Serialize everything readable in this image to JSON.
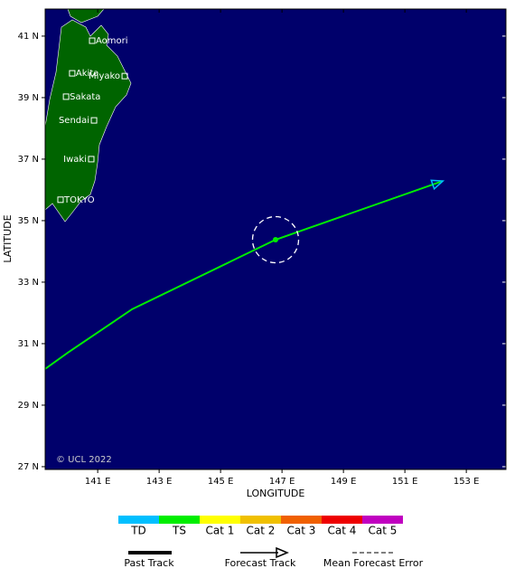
{
  "chart_data": {
    "type": "track",
    "xlabel": "LONGITUDE",
    "ylabel": "LATITUDE",
    "credit": "© UCL 2022",
    "xlim": [
      139.29,
      154.29
    ],
    "ylim": [
      26.91,
      41.88
    ],
    "xticks": [
      {
        "value": 141,
        "label": "141 E"
      },
      {
        "value": 143,
        "label": "143 E"
      },
      {
        "value": 145,
        "label": "145 E"
      },
      {
        "value": 147,
        "label": "147 E"
      },
      {
        "value": 149,
        "label": "149 E"
      },
      {
        "value": 151,
        "label": "151 E"
      },
      {
        "value": 153,
        "label": "153 E"
      }
    ],
    "yticks": [
      {
        "value": 27,
        "label": "27 N"
      },
      {
        "value": 29,
        "label": "29 N"
      },
      {
        "value": 31,
        "label": "31 N"
      },
      {
        "value": 33,
        "label": "33 N"
      },
      {
        "value": 35,
        "label": "35 N"
      },
      {
        "value": 37,
        "label": "37 N"
      },
      {
        "value": 39,
        "label": "39 N"
      },
      {
        "value": 41,
        "label": "41 N"
      }
    ],
    "ocean_color": "#00006b",
    "land_color": "#006400",
    "past_track": {
      "lon": [
        139.29,
        140.03,
        142.12,
        146.79
      ],
      "lat": [
        30.18,
        30.71,
        32.12,
        34.38
      ],
      "color": "#00ee00"
    },
    "forecast_track": {
      "lon": [
        146.79,
        152.24
      ],
      "lat": [
        34.38,
        36.29
      ],
      "color": "#00ee00",
      "arrow_color": "#00bfff"
    },
    "forecast_error_radius": 0.75,
    "cities": [
      {
        "name": "Aomori",
        "lon": 140.82,
        "lat": 40.85,
        "label_side": "right"
      },
      {
        "name": "Akita",
        "lon": 140.17,
        "lat": 39.79,
        "label_side": "right"
      },
      {
        "name": "Miyako",
        "lon": 141.88,
        "lat": 39.7,
        "label_side": "left"
      },
      {
        "name": "Sakata",
        "lon": 139.97,
        "lat": 39.03,
        "label_side": "right"
      },
      {
        "name": "Sendai",
        "lon": 140.88,
        "lat": 38.26,
        "label_side": "left"
      },
      {
        "name": "Iwaki",
        "lon": 140.79,
        "lat": 37.0,
        "label_side": "left"
      },
      {
        "name": "TOKYO",
        "lon": 139.79,
        "lat": 35.68,
        "label_side": "right"
      }
    ],
    "categories": [
      {
        "name": "TD",
        "color": "#00bfff"
      },
      {
        "name": "TS",
        "color": "#00ee00"
      },
      {
        "name": "Cat 1",
        "color": "#ffff00"
      },
      {
        "name": "Cat 2",
        "color": "#f0c000"
      },
      {
        "name": "Cat 3",
        "color": "#f06000"
      },
      {
        "name": "Cat 4",
        "color": "#ee0000"
      },
      {
        "name": "Cat 5",
        "color": "#c000c0"
      }
    ],
    "legend": [
      "Past Track",
      "Forecast Track",
      "Mean Forecast Error"
    ]
  }
}
